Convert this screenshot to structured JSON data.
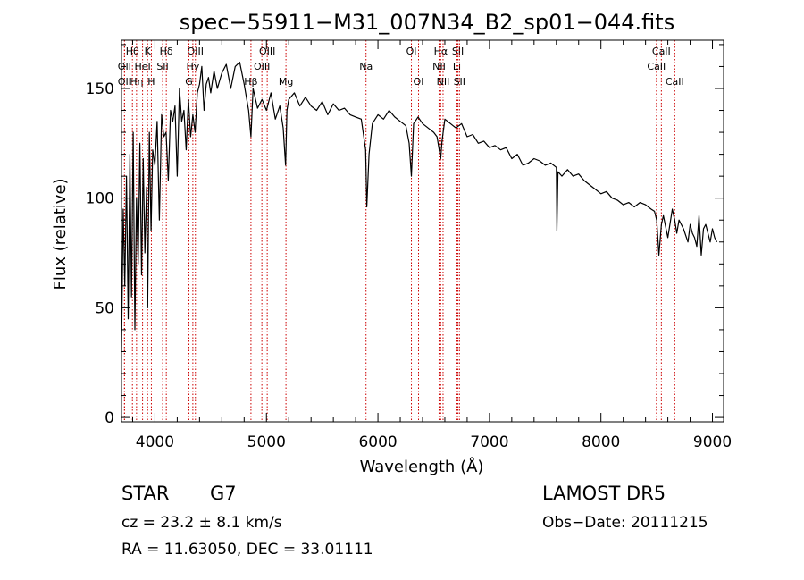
{
  "chart_data": {
    "type": "line",
    "title": "spec−55911−M31_007N34_B2_sp01−044.fits",
    "xlabel": "Wavelength (Å)",
    "ylabel": "Flux (relative)",
    "xlim": [
      3700,
      9100
    ],
    "ylim": [
      -2,
      172
    ],
    "x_ticks": [
      4000,
      5000,
      6000,
      7000,
      8000,
      9000
    ],
    "y_ticks": [
      0,
      50,
      100,
      150
    ],
    "x_minor_step": 200,
    "y_minor_step": 10,
    "grid": false,
    "series": [
      {
        "x": [
          3700,
          3715,
          3730,
          3745,
          3760,
          3775,
          3790,
          3805,
          3820,
          3835,
          3850,
          3865,
          3880,
          3895,
          3910,
          3925,
          3935,
          3950,
          3965,
          3980,
          4000,
          4020,
          4040,
          4060,
          4080,
          4100,
          4120,
          4140,
          4160,
          4180,
          4200,
          4220,
          4240,
          4260,
          4280,
          4300,
          4320,
          4340,
          4360,
          4380,
          4400,
          4420,
          4440,
          4460,
          4480,
          4500,
          4530,
          4560,
          4600,
          4640,
          4680,
          4720,
          4760,
          4800,
          4840,
          4861,
          4880,
          4920,
          4960,
          5000,
          5040,
          5080,
          5120,
          5150,
          5172,
          5184,
          5200,
          5250,
          5300,
          5350,
          5400,
          5450,
          5500,
          5550,
          5600,
          5650,
          5700,
          5750,
          5800,
          5850,
          5890,
          5900,
          5920,
          5950,
          6000,
          6050,
          6100,
          6150,
          6200,
          6250,
          6280,
          6300,
          6320,
          6360,
          6400,
          6450,
          6500,
          6530,
          6563,
          6575,
          6600,
          6650,
          6700,
          6750,
          6800,
          6850,
          6900,
          6950,
          7000,
          7050,
          7100,
          7150,
          7200,
          7250,
          7300,
          7350,
          7400,
          7450,
          7500,
          7550,
          7600,
          7605,
          7615,
          7650,
          7700,
          7750,
          7800,
          7850,
          7900,
          7950,
          8000,
          8050,
          8100,
          8150,
          8200,
          8250,
          8300,
          8350,
          8400,
          8450,
          8480,
          8500,
          8520,
          8542,
          8560,
          8600,
          8640,
          8662,
          8680,
          8700,
          8740,
          8780,
          8800,
          8820,
          8840,
          8860,
          8880,
          8900,
          8920,
          8940,
          8960,
          8980,
          9000,
          9020,
          9040
        ],
        "values": [
          30,
          95,
          60,
          110,
          45,
          120,
          55,
          130,
          40,
          100,
          70,
          125,
          65,
          118,
          75,
          105,
          50,
          130,
          85,
          122,
          115,
          135,
          90,
          138,
          128,
          130,
          108,
          140,
          135,
          142,
          110,
          150,
          135,
          140,
          122,
          145,
          128,
          138,
          130,
          148,
          152,
          160,
          140,
          152,
          155,
          148,
          158,
          150,
          157,
          161,
          150,
          160,
          162,
          152,
          140,
          128,
          150,
          141,
          145,
          140,
          148,
          136,
          142,
          132,
          115,
          140,
          145,
          148,
          142,
          146,
          142,
          140,
          144,
          138,
          143,
          140,
          141,
          138,
          137,
          136,
          122,
          96,
          120,
          134,
          138,
          136,
          140,
          137,
          135,
          133,
          125,
          110,
          134,
          137,
          134,
          132,
          130,
          128,
          118,
          126,
          136,
          134,
          132,
          134,
          128,
          129,
          125,
          126,
          123,
          124,
          122,
          123,
          118,
          120,
          115,
          116,
          118,
          117,
          115,
          116,
          114,
          85,
          112,
          110,
          113,
          110,
          111,
          108,
          106,
          104,
          102,
          103,
          100,
          99,
          97,
          98,
          96,
          98,
          97,
          95,
          94,
          90,
          74,
          88,
          92,
          82,
          95,
          90,
          84,
          90,
          86,
          80,
          88,
          84,
          82,
          78,
          92,
          74,
          86,
          88,
          84,
          80,
          86,
          82,
          80
        ],
        "color": "#000000"
      }
    ],
    "line_markers": [
      {
        "label": "Hθ",
        "wavelength": 3798,
        "row": 1
      },
      {
        "label": "OII",
        "wavelength": 3727,
        "row": 2
      },
      {
        "label": "OII",
        "wavelength": 3727,
        "row": 3
      },
      {
        "label": "Hη",
        "wavelength": 3835,
        "row": 3
      },
      {
        "label": "HeI",
        "wavelength": 3889,
        "row": 2
      },
      {
        "label": "K",
        "wavelength": 3934,
        "row": 1
      },
      {
        "label": "H",
        "wavelength": 3968,
        "row": 3
      },
      {
        "label": "SII",
        "wavelength": 4069,
        "row": 2
      },
      {
        "label": "Hδ",
        "wavelength": 4102,
        "row": 1
      },
      {
        "label": "OIII",
        "wavelength": 4363,
        "row": 1
      },
      {
        "label": "Hγ",
        "wavelength": 4340,
        "row": 2
      },
      {
        "label": "G",
        "wavelength": 4305,
        "row": 3
      },
      {
        "label": "OIII",
        "wavelength": 5007,
        "row": 1
      },
      {
        "label": "OIII",
        "wavelength": 4959,
        "row": 2
      },
      {
        "label": "Hβ",
        "wavelength": 4861,
        "row": 3
      },
      {
        "label": "Mg",
        "wavelength": 5175,
        "row": 3
      },
      {
        "label": "Na",
        "wavelength": 5893,
        "row": 2
      },
      {
        "label": "OI",
        "wavelength": 6300,
        "row": 1
      },
      {
        "label": "OI",
        "wavelength": 6364,
        "row": 3
      },
      {
        "label": "Hα",
        "wavelength": 6563,
        "row": 1
      },
      {
        "label": "NII",
        "wavelength": 6548,
        "row": 2
      },
      {
        "label": "NII",
        "wavelength": 6584,
        "row": 3
      },
      {
        "label": "SII",
        "wavelength": 6717,
        "row": 1
      },
      {
        "label": "Li",
        "wavelength": 6708,
        "row": 2
      },
      {
        "label": "SII",
        "wavelength": 6731,
        "row": 3
      },
      {
        "label": "CaII",
        "wavelength": 8542,
        "row": 1
      },
      {
        "label": "CaII",
        "wavelength": 8498,
        "row": 2
      },
      {
        "label": "CaII",
        "wavelength": 8662,
        "row": 3
      }
    ]
  },
  "info": {
    "class": "STAR",
    "subclass": "G7",
    "survey": "LAMOST DR5",
    "cz": "cz = 23.2 ± 8.1 km/s",
    "obs_date": "Obs−Date: 20111215",
    "coords": "RA =  11.63050, DEC =  33.01111"
  }
}
